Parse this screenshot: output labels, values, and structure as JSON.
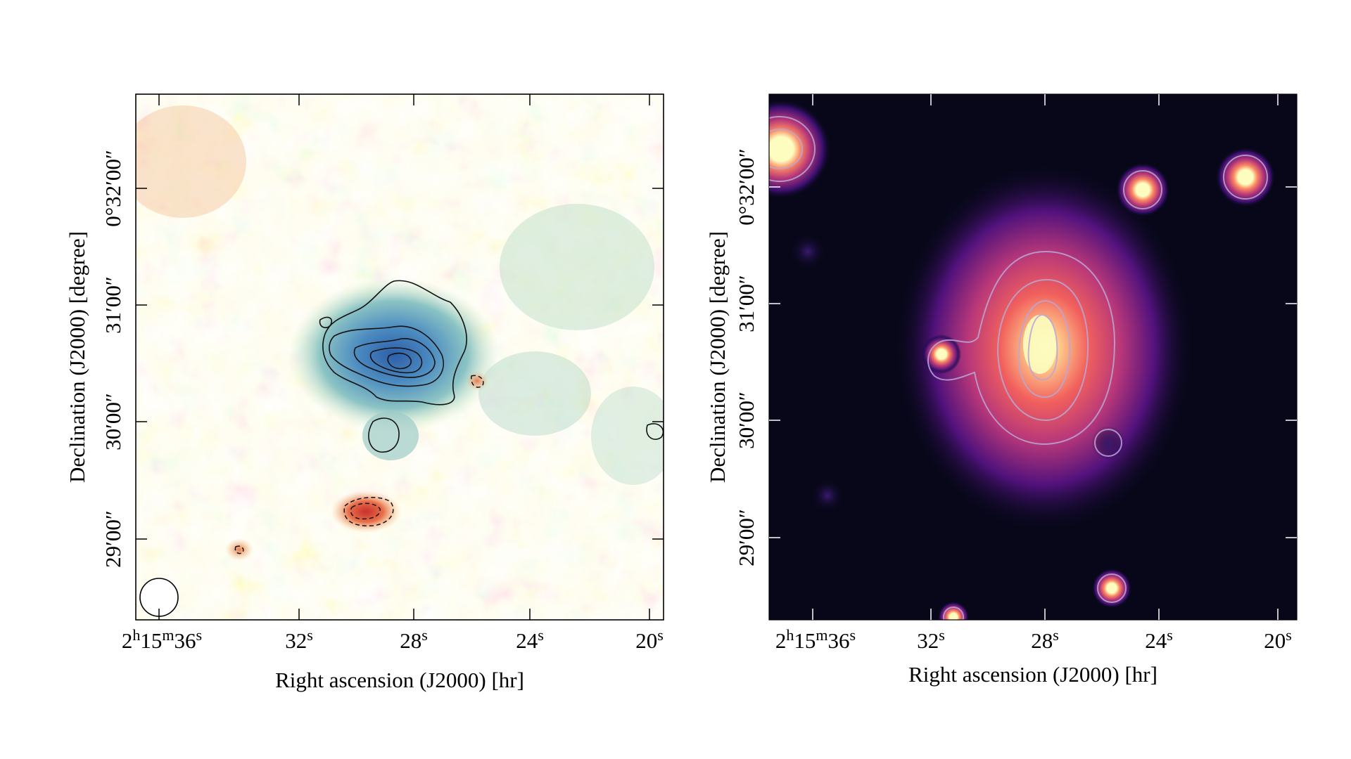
{
  "chart_data": [
    {
      "type": "heatmap",
      "colormap": "Spectral (blue = high, red = low)",
      "title": "",
      "xlabel": "Right ascension (J2000) [hr]",
      "ylabel": "Declination (J2000) [degree]",
      "x_ticks": [
        {
          "base": "2",
          "sup1": "h",
          "mid": "15",
          "sup2": "m",
          "sec": "36",
          "sup3": "s"
        },
        {
          "sec": "32",
          "sup3": "s"
        },
        {
          "sec": "28",
          "sup3": "s"
        },
        {
          "sec": "24",
          "sup3": "s"
        },
        {
          "sec": "20",
          "sup3": "s"
        }
      ],
      "y_ticks": [
        "29′00″",
        "30′00″",
        "31′00″",
        "0°32′00″"
      ],
      "contours": "solid = positive levels, dashed = negative levels",
      "beam": "circular beam marker at lower-left",
      "features": [
        "central extended source near 2h15m28s +0°30′25″",
        "negative decrement near 2h15m30s +0°29′10″"
      ]
    },
    {
      "type": "heatmap",
      "colormap": "magma",
      "title": "",
      "xlabel": "Right ascension (J2000) [hr]",
      "ylabel": "Declination (J2000) [degree]",
      "x_ticks": [
        {
          "base": "2",
          "sup1": "h",
          "mid": "15",
          "sup2": "m",
          "sec": "36",
          "sup3": "s"
        },
        {
          "sec": "32",
          "sup3": "s"
        },
        {
          "sec": "28",
          "sup3": "s"
        },
        {
          "sec": "24",
          "sup3": "s"
        },
        {
          "sec": "20",
          "sup3": "s"
        }
      ],
      "y_ticks": [
        "29′00″",
        "30′00″",
        "31′00″",
        "0°32′00″"
      ],
      "contours": "light contours on smoothed emission",
      "features": [
        "bright extended source near 2h15m28s +0°30′35″",
        "compact point sources around field"
      ]
    }
  ]
}
